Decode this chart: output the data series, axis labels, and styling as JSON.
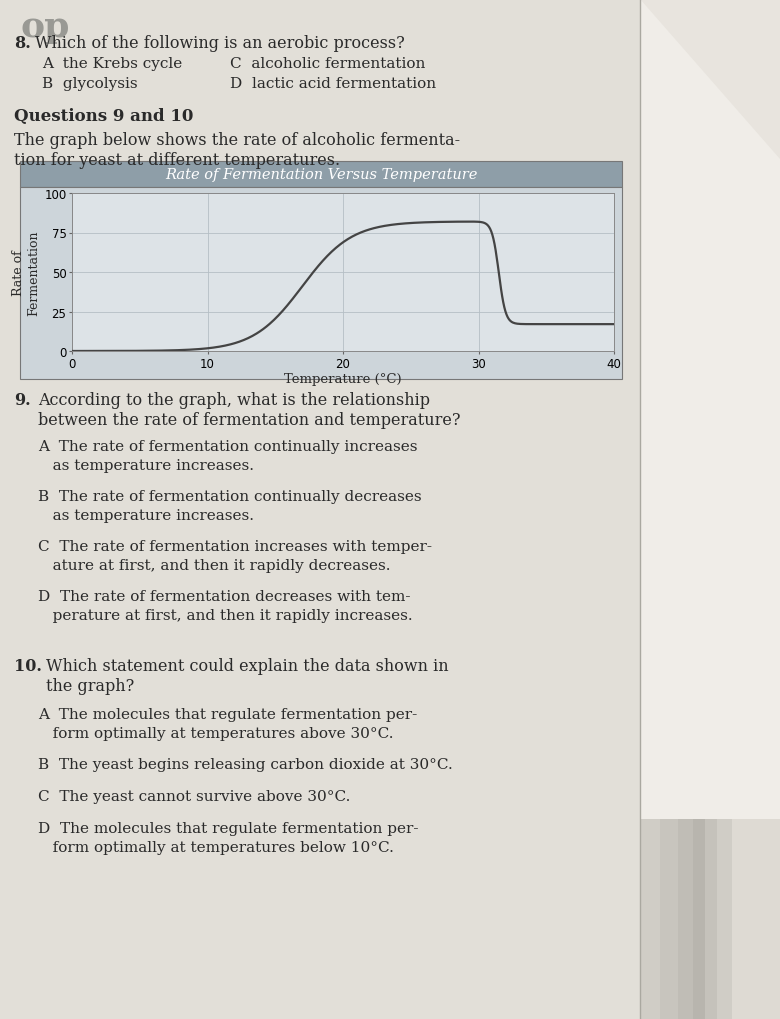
{
  "page_bg": "#c8c5be",
  "content_bg": "#e2dfd8",
  "right_bg": "#d5d2cb",
  "top_fragment": "op",
  "q8_number": "8.",
  "q8_text": "Which of the following is an aerobic process?",
  "q8_A": "A  the Krebs cycle",
  "q8_C": "C  alcoholic fermentation",
  "q8_B": "B  glycolysis",
  "q8_D": "D  lactic acid fermentation",
  "section_header": "Questions 9 and 10",
  "intro_text1": "The graph below shows the rate of alcoholic fermenta-",
  "intro_text2": "tion for yeast at different temperatures.",
  "graph_title": "Rate of Fermentation Versus Temperature",
  "graph_title_bg": "#8e9ea8",
  "graph_plot_bg": "#cdd5da",
  "graph_inner_bg": "#dde3e7",
  "graph_grid_color": "#b5bfc5",
  "curve_color": "#444444",
  "ylabel_line1": "Rate of",
  "ylabel_line2": "Fermentation",
  "xlabel": "Temperature (°C)",
  "yticks": [
    0,
    25,
    50,
    75,
    100
  ],
  "xticks": [
    0,
    10,
    20,
    30,
    40
  ],
  "q9_number": "9.",
  "q9_text1": "According to the graph, what is the relationship",
  "q9_text2": "between the rate of fermentation and temperature?",
  "q9_A1": "A  The rate of fermentation continually increases",
  "q9_A2": "   as temperature increases.",
  "q9_B1": "B  The rate of fermentation continually decreases",
  "q9_B2": "   as temperature increases.",
  "q9_C1": "C  The rate of fermentation increases with temper-",
  "q9_C2": "   ature at first, and then it rapidly decreases.",
  "q9_D1": "D  The rate of fermentation decreases with tem-",
  "q9_D2": "   perature at first, and then it rapidly increases.",
  "q10_number": "10.",
  "q10_text1": "Which statement could explain the data shown in",
  "q10_text2": "the graph?",
  "q10_A1": "A  The molecules that regulate fermentation per-",
  "q10_A2": "   form optimally at temperatures above 30°C.",
  "q10_B": "B  The yeast begins releasing carbon dioxide at 30°C.",
  "q10_C": "C  The yeast cannot survive above 30°C.",
  "q10_D1": "D  The molecules that regulate fermentation per-",
  "q10_D2": "   form optimally at temperatures below 10°C.",
  "text_color": "#2a2a2a",
  "header_color": "#1a1a1a",
  "faint_color": "#888888"
}
